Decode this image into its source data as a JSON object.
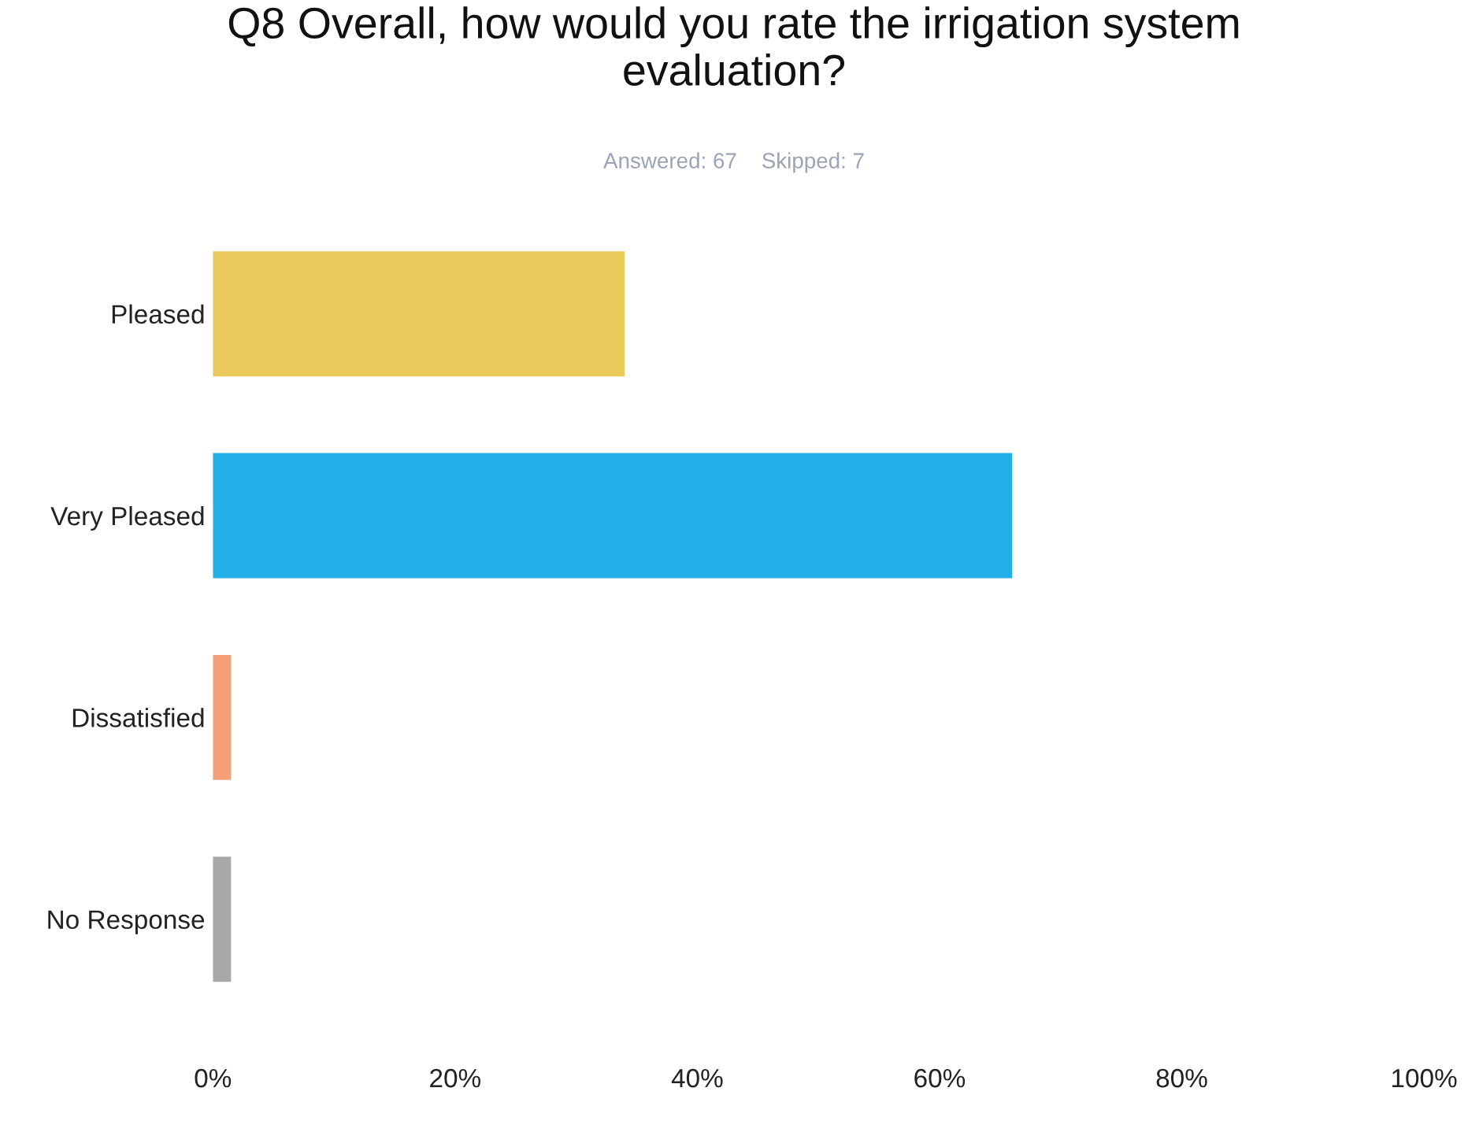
{
  "chart_data": {
    "type": "bar",
    "orientation": "horizontal",
    "title": "Q8 Overall, how would you rate the irrigation system evaluation?",
    "subtitle": "Answered: 67    Skipped: 7",
    "categories": [
      "Pleased",
      "Very Pleased",
      "Dissatisfied",
      "No Response"
    ],
    "values": [
      34,
      66,
      1.5,
      1.5
    ],
    "colors": [
      "#e8c95a",
      "#22aee6",
      "#f4a07a",
      "#a8a8a8"
    ],
    "xlim": [
      0,
      100
    ],
    "xticks": [
      {
        "value": 0,
        "label": "0%"
      },
      {
        "value": 20,
        "label": "20%"
      },
      {
        "value": 40,
        "label": "40%"
      },
      {
        "value": 60,
        "label": "60%"
      },
      {
        "value": 80,
        "label": "80%"
      },
      {
        "value": 100,
        "label": "100%"
      }
    ],
    "grid": false
  }
}
